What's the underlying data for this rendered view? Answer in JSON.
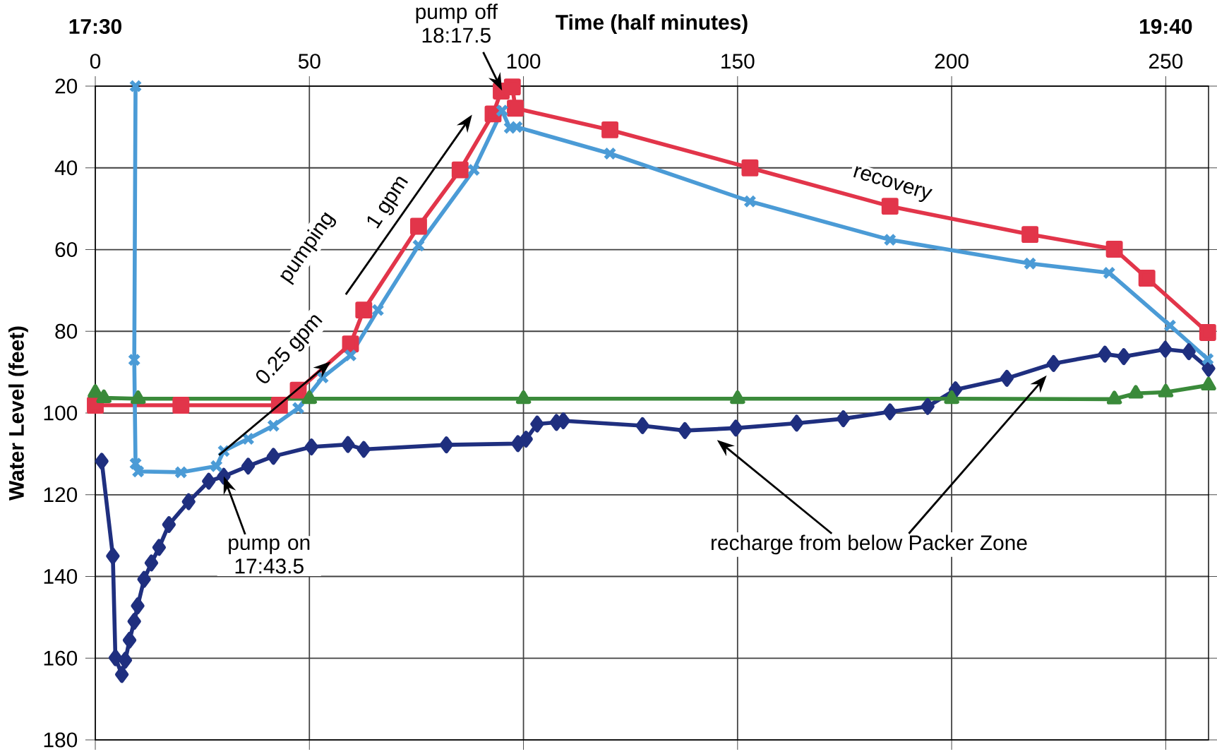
{
  "chart_data": {
    "type": "line",
    "xlabel": "Time (half minutes)",
    "ylabel": "Water Level (feet)",
    "xlim": [
      0,
      260
    ],
    "xticks": [
      0,
      50,
      100,
      150,
      200,
      250
    ],
    "ylim": [
      180,
      20
    ],
    "yticks": [
      20,
      40,
      60,
      80,
      100,
      120,
      140,
      160,
      180
    ],
    "grid": true,
    "line_style": "solid",
    "series": [
      {
        "color": "#1f2f7f",
        "marker": "diamond",
        "x": [
          1.5,
          4.1,
          4.7,
          6.2,
          7.0,
          8,
          9.1,
          9.9,
          11.4,
          13.1,
          14.9,
          17.2,
          21.8,
          26.5,
          30,
          35.7,
          41.6,
          50.5,
          59,
          62.7,
          82,
          98.7,
          100.6,
          103.2,
          107.7,
          109.3,
          127.8,
          137.7,
          149.6,
          163.8,
          174.7,
          185.6,
          194.4,
          200.9,
          212.9,
          223.8,
          235.8,
          240.2,
          249.9,
          255.4,
          260
        ],
        "values": [
          111.8,
          135,
          159.9,
          164,
          160.5,
          155.6,
          151,
          147.2,
          140.7,
          136.7,
          132.9,
          127.3,
          121.7,
          116.7,
          115.5,
          113,
          110.6,
          108.3,
          107.7,
          108.9,
          107.8,
          107.5,
          106.4,
          102.7,
          102.3,
          101.9,
          103.1,
          104.3,
          103.7,
          102.5,
          101.4,
          99.7,
          98.4,
          94.3,
          91.5,
          87.9,
          85.6,
          86.2,
          84.4,
          85,
          89.1
        ]
      },
      {
        "color": "#e2354a",
        "marker": "square",
        "x": [
          0,
          20,
          43,
          47.4,
          59.6,
          62.7,
          75.5,
          85.2,
          92.9,
          94.8,
          97.4,
          98.1,
          120.2,
          152.9,
          185.6,
          218.3,
          238,
          245.6,
          259.8
        ],
        "values": [
          98.1,
          98.1,
          98.1,
          94.4,
          83.1,
          74.8,
          54.3,
          40.5,
          26.8,
          21.2,
          20.2,
          25.4,
          30.7,
          40,
          49.4,
          56.3,
          59.9,
          67,
          80.3
        ]
      },
      {
        "color": "#4b9bd6",
        "marker": "cross",
        "x": [
          9.4,
          9.1,
          9.4,
          10,
          20,
          28.3,
          30,
          35.7,
          41.6,
          47.4,
          53.1,
          59.6,
          66,
          75.5,
          88.4,
          95,
          96.8,
          98.4,
          120.2,
          152.9,
          185.6,
          218.3,
          236.8,
          251,
          259.8
        ],
        "values": [
          20,
          87,
          112.4,
          114.3,
          114.5,
          113,
          109.3,
          106.3,
          103.1,
          98.8,
          91.3,
          85.9,
          74.8,
          59,
          40.5,
          26,
          30.2,
          30,
          36.5,
          48.2,
          57.6,
          63.4,
          65.7,
          78.6,
          86.8
        ]
      },
      {
        "color": "#3a8a3a",
        "marker": "triangle",
        "x": [
          0,
          2,
          10,
          50,
          100,
          150,
          200,
          238,
          243,
          250,
          260
        ],
        "values": [
          95,
          96.3,
          96.5,
          96.5,
          96.5,
          96.5,
          96.5,
          96.6,
          95.2,
          94.9,
          93.2
        ]
      }
    ],
    "annotations": [
      {
        "text": "pump on 17:43.5",
        "x": 30,
        "y": 115.5
      },
      {
        "text": "pump off 18:17.5",
        "x": 95,
        "y": 21.1
      },
      {
        "text": "0.25 gpm",
        "x": 55,
        "y": 87.4
      },
      "1 gpm",
      "recharge from below Packer Zone",
      "pumping",
      "recovery",
      "17:30",
      "19:40"
    ]
  }
}
